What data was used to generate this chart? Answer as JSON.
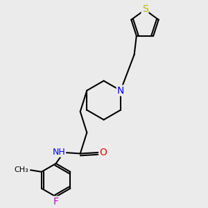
{
  "bg_color": "#ebebeb",
  "bond_width": 1.5,
  "atom_colors": {
    "S": "#b8b800",
    "N": "#0000ee",
    "O": "#ee0000",
    "F": "#cc00cc",
    "C": "#000000"
  },
  "font_size": 8.5,
  "figsize": [
    3.0,
    3.0
  ],
  "dpi": 100
}
